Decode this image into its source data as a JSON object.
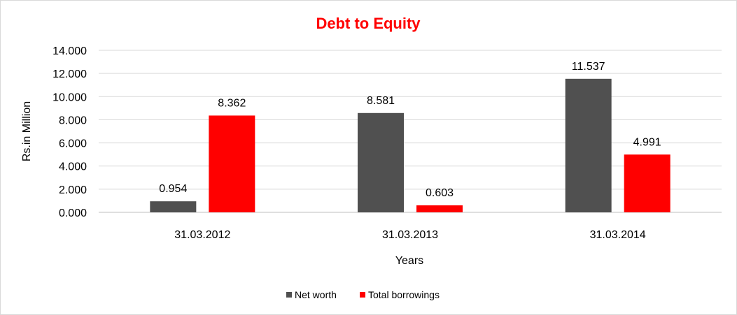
{
  "colors": {
    "title": "#ff0000",
    "net_worth": "#505050",
    "total_borrowings": "#ff0000",
    "grid": "#d9d9d9",
    "axis": "#bfbfbf"
  },
  "chart_data": {
    "type": "bar",
    "title": "Debt to Equity",
    "xlabel": "Years",
    "ylabel": "Rs.in Million",
    "categories": [
      "31.03.2012",
      "31.03.2013",
      "31.03.2014"
    ],
    "series": [
      {
        "name": "Net worth",
        "values": [
          0.954,
          8.581,
          11.537
        ]
      },
      {
        "name": "Total borrowings",
        "values": [
          8.362,
          0.603,
          4.991
        ]
      }
    ],
    "data_labels": [
      [
        "0.954",
        "8.581",
        "11.537"
      ],
      [
        "8.362",
        "0.603",
        "4.991"
      ]
    ],
    "ylim": [
      0,
      14
    ],
    "yticks": [
      0,
      2,
      4,
      6,
      8,
      10,
      12,
      14
    ],
    "ytick_labels": [
      "0.000",
      "2.000",
      "4.000",
      "6.000",
      "8.000",
      "10.000",
      "12.000",
      "14.000"
    ],
    "grid": true,
    "legend": "bottom"
  }
}
